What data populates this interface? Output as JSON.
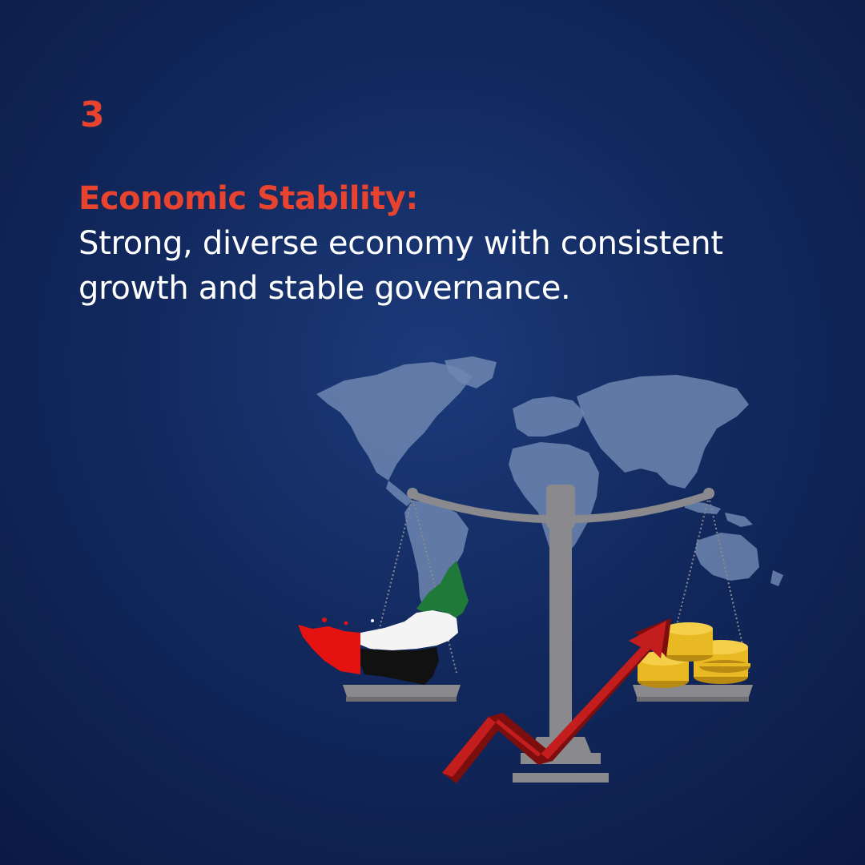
{
  "slide": {
    "number": "3",
    "heading": "Economic Stability:",
    "description_line1": "Strong, diverse economy with consistent",
    "description_line2": "growth and stable governance."
  },
  "colors": {
    "background": "#12295e",
    "accent": "#e8432e",
    "text": "#ffffff",
    "world_map": "#6f86b0",
    "scale": "#8a8a8e",
    "arrow": "#c41d1d",
    "coins": "#e8b923",
    "flag_green": "#1f7a3a",
    "flag_red": "#e51212",
    "flag_black": "#111111",
    "flag_white": "#f4f4f4"
  },
  "illustration": {
    "icons": [
      "world-map-icon",
      "balance-scale-icon",
      "uae-flag-map-icon",
      "coin-stack-icon",
      "growth-arrow-icon"
    ]
  }
}
